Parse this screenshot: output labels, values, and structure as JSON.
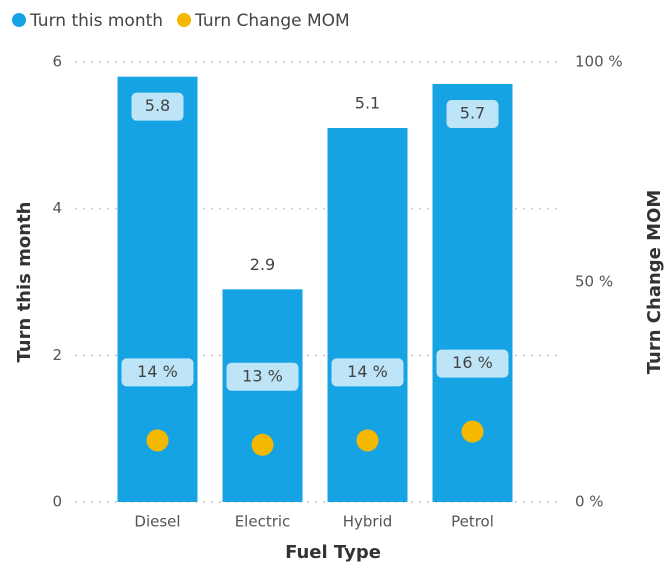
{
  "chart_data": {
    "type": "bar",
    "x_label": "Fuel Type",
    "y_label": "Turn this month",
    "y2_label": "Turn Change MOM",
    "categories": [
      "Diesel",
      "Electric",
      "Hybrid",
      "Petrol"
    ],
    "series": [
      {
        "name": "Turn this month",
        "type": "bar",
        "color": "#15a3e3",
        "values": [
          5.8,
          2.9,
          5.1,
          5.7
        ]
      },
      {
        "name": "Turn Change MOM",
        "type": "scatter",
        "axis": "y2",
        "color": "#f5b800",
        "values": [
          14,
          13,
          14,
          16
        ],
        "value_labels": [
          "14 %",
          "13 %",
          "14 %",
          "16 %"
        ]
      }
    ],
    "ylim": [
      0,
      6
    ],
    "yticks": [
      0,
      2,
      4,
      6
    ],
    "y2lim": [
      0,
      100
    ],
    "y2ticks": [
      {
        "value": 0,
        "label": "0 %"
      },
      {
        "value": 50,
        "label": "50 %"
      },
      {
        "value": 100,
        "label": "100 %"
      }
    ],
    "grid": true,
    "legend": "top-left"
  }
}
